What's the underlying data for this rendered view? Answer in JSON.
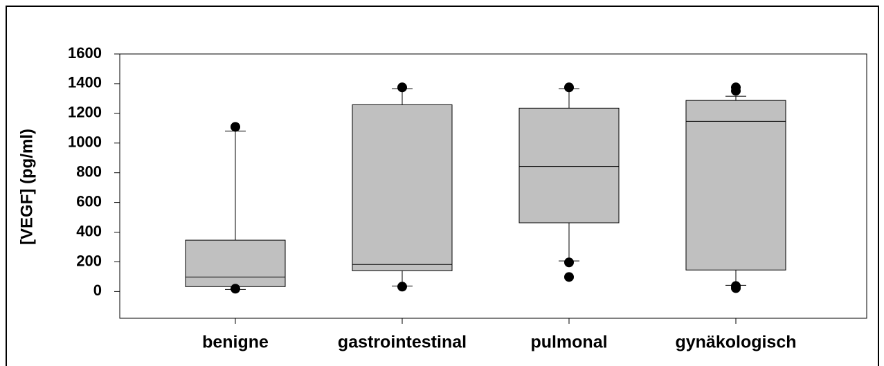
{
  "chart_data": {
    "type": "box",
    "y_label": "[VEGF] (pg/ml)",
    "categories": [
      "benigne",
      "gastrointestinal",
      "pulmonal",
      "gynäkologisch"
    ],
    "color": "#c0c0c0",
    "boxes": [
      {
        "whisker_low": 14,
        "q1": 33,
        "median": 98,
        "q3": 346,
        "whisker_high": 1081,
        "outliers": [
          1109,
          19
        ]
      },
      {
        "whisker_low": 37,
        "q1": 140,
        "median": 182,
        "q3": 1258,
        "whisker_high": 1366,
        "outliers": [
          1375,
          33
        ]
      },
      {
        "whisker_low": 206,
        "q1": 463,
        "median": 842,
        "q3": 1235,
        "whisker_high": 1366,
        "outliers": [
          1375,
          196,
          98
        ]
      },
      {
        "whisker_low": 42,
        "q1": 145,
        "median": 1146,
        "q3": 1287,
        "whisker_high": 1315,
        "outliers": [
          1375,
          1352,
          37,
          23
        ]
      }
    ],
    "ylim": [
      -180,
      1600
    ],
    "yticks": [
      0,
      200,
      400,
      600,
      800,
      1000,
      1200,
      1400,
      1600
    ]
  }
}
